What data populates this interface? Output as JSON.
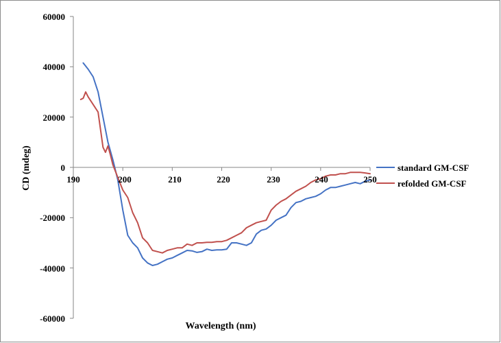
{
  "chart_data": {
    "type": "line",
    "xlabel": "Wavelength (nm)",
    "ylabel": "CD (mdeg)",
    "xlim": [
      190,
      250
    ],
    "ylim": [
      -60000,
      60000
    ],
    "x_ticks": [
      "190",
      "200",
      "210",
      "220",
      "230",
      "240",
      "250"
    ],
    "y_ticks": [
      "60000",
      "40000",
      "20000",
      "0",
      "-20000",
      "-40000",
      "-60000"
    ],
    "legend_position": "right",
    "series": [
      {
        "name": "standard GM-CSF",
        "color": "#4472C4",
        "x": [
          192,
          193,
          194,
          195,
          196,
          197,
          198,
          199,
          200,
          201,
          202,
          203,
          204,
          205,
          206,
          207,
          208,
          209,
          210,
          211,
          212,
          213,
          214,
          215,
          216,
          217,
          218,
          219,
          220,
          221,
          222,
          223,
          224,
          225,
          226,
          227,
          228,
          229,
          230,
          231,
          232,
          233,
          234,
          235,
          236,
          237,
          238,
          239,
          240,
          241,
          242,
          243,
          244,
          245,
          246,
          247,
          248,
          249,
          250
        ],
        "y": [
          41500,
          39000,
          36000,
          30000,
          20000,
          10000,
          3000,
          -5000,
          -17000,
          -27000,
          -30000,
          -32000,
          -36000,
          -38000,
          -39000,
          -38500,
          -37500,
          -36500,
          -36000,
          -35000,
          -34000,
          -33000,
          -33200,
          -33800,
          -33500,
          -32500,
          -33000,
          -32800,
          -32800,
          -32500,
          -30000,
          -30000,
          -30500,
          -31000,
          -30000,
          -26500,
          -25000,
          -24500,
          -23000,
          -21000,
          -20000,
          -19000,
          -16000,
          -14000,
          -13500,
          -12500,
          -12000,
          -11500,
          -10500,
          -9000,
          -8000,
          -8000,
          -7500,
          -7000,
          -6500,
          -6000,
          -6500,
          -5500,
          -5000
        ]
      },
      {
        "name": "refolded GM-CSF",
        "color": "#C0504D",
        "x": [
          191.5,
          192,
          192.5,
          193,
          194,
          195,
          196,
          196.5,
          197,
          197.5,
          198,
          199,
          200,
          201,
          202,
          203,
          204,
          205,
          206,
          207,
          208,
          209,
          210,
          211,
          212,
          213,
          214,
          215,
          216,
          217,
          218,
          219,
          220,
          221,
          222,
          223,
          224,
          225,
          226,
          227,
          228,
          229,
          230,
          231,
          232,
          233,
          234,
          235,
          236,
          237,
          238,
          239,
          240,
          241,
          242,
          243,
          244,
          245,
          246,
          247,
          248,
          249,
          250
        ],
        "y": [
          27000,
          27500,
          30000,
          28000,
          25000,
          22000,
          8000,
          6000,
          8500,
          5000,
          1000,
          -4000,
          -9000,
          -12000,
          -18000,
          -22000,
          -28000,
          -30000,
          -33000,
          -33500,
          -34000,
          -33000,
          -32500,
          -32000,
          -32000,
          -30500,
          -31000,
          -30000,
          -30000,
          -29800,
          -29800,
          -29500,
          -29500,
          -29000,
          -28000,
          -27000,
          -26000,
          -24000,
          -23000,
          -22000,
          -21500,
          -21000,
          -17000,
          -15000,
          -13500,
          -12500,
          -11000,
          -9500,
          -8500,
          -7500,
          -6000,
          -5000,
          -4500,
          -3500,
          -3000,
          -3000,
          -2500,
          -2500,
          -2000,
          -2000,
          -2000,
          -2200,
          -2500
        ]
      }
    ]
  }
}
